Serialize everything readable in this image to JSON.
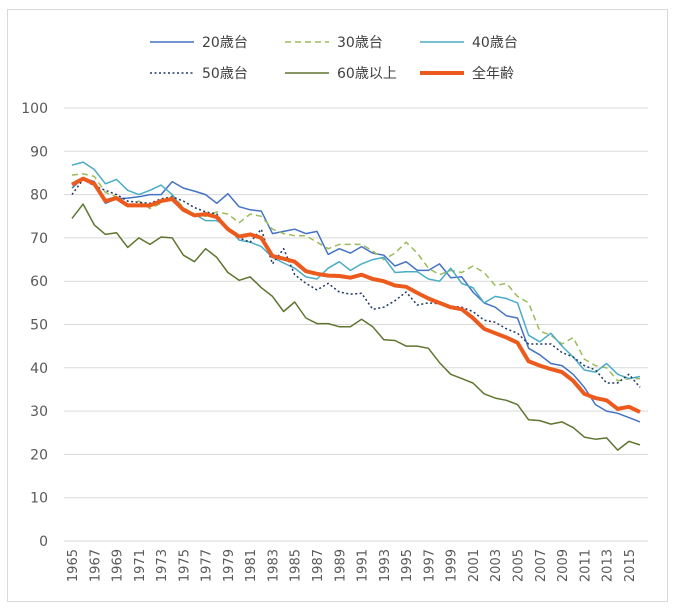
{
  "chart_data": {
    "type": "line",
    "title": "",
    "xlabel": "",
    "ylabel": "",
    "ylim": [
      0,
      100
    ],
    "yticks": [
      0,
      10,
      20,
      30,
      40,
      50,
      60,
      70,
      80,
      90,
      100
    ],
    "grid": true,
    "legend_position": "top",
    "x": [
      1965,
      1966,
      1967,
      1968,
      1969,
      1970,
      1971,
      1972,
      1973,
      1974,
      1975,
      1976,
      1977,
      1978,
      1979,
      1980,
      1981,
      1982,
      1983,
      1984,
      1985,
      1986,
      1987,
      1988,
      1989,
      1990,
      1991,
      1992,
      1993,
      1994,
      1995,
      1996,
      1997,
      1998,
      1999,
      2000,
      2001,
      2002,
      2003,
      2004,
      2005,
      2006,
      2007,
      2008,
      2009,
      2010,
      2011,
      2012,
      2013,
      2014,
      2015,
      2016
    ],
    "xtick_labels": [
      "1965",
      "1967",
      "1969",
      "1971",
      "1973",
      "1975",
      "1977",
      "1979",
      "1981",
      "1983",
      "1985",
      "1987",
      "1989",
      "1991",
      "1993",
      "1995",
      "1997",
      "1999",
      "2001",
      "2003",
      "2005",
      "2007",
      "2009",
      "2011",
      "2013",
      "2015"
    ],
    "series": [
      {
        "name": "20歳台",
        "color": "#4472c4",
        "dash": "",
        "width": 1.5,
        "values": [
          81.5,
          83.8,
          83.0,
          78.0,
          79.0,
          79.2,
          79.5,
          80.0,
          80.0,
          83.0,
          81.5,
          80.8,
          80.0,
          78.0,
          80.2,
          77.2,
          76.5,
          76.2,
          71.0,
          71.5,
          72.0,
          71.0,
          71.5,
          66.2,
          67.5,
          66.5,
          68.0,
          66.5,
          66.0,
          63.5,
          64.5,
          62.5,
          62.5,
          64.0,
          60.8,
          61.0,
          57.5,
          55.0,
          54.0,
          52.0,
          51.5,
          44.5,
          43.0,
          41.0,
          40.5,
          38.5,
          35.5,
          31.5,
          30.0,
          29.5,
          28.5,
          27.5
        ]
      },
      {
        "name": "30歳台",
        "color": "#9bbb59",
        "dash": "6,4",
        "width": 1.5,
        "values": [
          84.5,
          84.8,
          84.2,
          80.5,
          79.5,
          77.2,
          78.5,
          76.8,
          78.0,
          80.0,
          77.0,
          75.5,
          75.0,
          76.0,
          75.5,
          73.5,
          75.5,
          75.0,
          72.0,
          71.0,
          70.5,
          70.5,
          69.0,
          67.5,
          68.5,
          68.5,
          68.5,
          67.0,
          65.0,
          66.5,
          69.0,
          66.5,
          63.0,
          61.5,
          62.5,
          62.0,
          63.5,
          62.0,
          59.0,
          59.5,
          56.5,
          55.0,
          48.5,
          47.5,
          45.5,
          47.0,
          42.0,
          40.5,
          40.0,
          37.0,
          37.5,
          37.5
        ]
      },
      {
        "name": "40歳台",
        "color": "#4bacc6",
        "dash": "",
        "width": 1.5,
        "values": [
          86.8,
          87.5,
          85.8,
          82.5,
          83.5,
          81.0,
          80.0,
          81.0,
          82.2,
          80.0,
          76.5,
          75.5,
          74.0,
          74.0,
          72.5,
          69.5,
          69.0,
          68.0,
          65.5,
          64.2,
          63.0,
          61.0,
          60.5,
          63.0,
          64.5,
          62.5,
          64.0,
          65.0,
          65.5,
          62.0,
          62.2,
          62.2,
          60.5,
          60.0,
          63.0,
          59.5,
          58.5,
          55.0,
          56.5,
          56.0,
          55.0,
          47.5,
          46.0,
          48.0,
          45.0,
          42.5,
          39.5,
          39.0,
          41.0,
          38.5,
          37.5,
          38.0
        ]
      },
      {
        "name": "50歳台",
        "color": "#1f3864",
        "dash": "2,2.5",
        "width": 1.5,
        "values": [
          80.0,
          83.5,
          82.0,
          81.0,
          80.0,
          78.5,
          78.2,
          78.0,
          79.0,
          79.5,
          78.5,
          77.0,
          76.0,
          75.5,
          72.0,
          70.0,
          69.0,
          72.0,
          64.0,
          67.5,
          61.5,
          59.5,
          58.0,
          59.5,
          57.5,
          57.0,
          57.2,
          53.5,
          54.0,
          55.5,
          57.5,
          54.5,
          55.0,
          54.8,
          54.2,
          54.0,
          53.0,
          51.0,
          50.5,
          49.0,
          48.0,
          45.5,
          45.5,
          45.5,
          43.5,
          42.5,
          40.5,
          39.5,
          36.5,
          36.5,
          38.5,
          35.5
        ]
      },
      {
        "name": "60歳以上",
        "color": "#5f7530",
        "dash": "",
        "width": 1.5,
        "values": [
          74.5,
          77.8,
          73.0,
          70.8,
          71.2,
          67.8,
          70.0,
          68.5,
          70.2,
          70.0,
          66.0,
          64.5,
          67.5,
          65.5,
          62.0,
          60.2,
          61.0,
          58.5,
          56.5,
          53.0,
          55.2,
          51.5,
          50.2,
          50.2,
          49.5,
          49.5,
          51.2,
          49.5,
          46.5,
          46.3,
          45.0,
          45.0,
          44.5,
          41.2,
          38.5,
          37.5,
          36.5,
          34.0,
          33.0,
          32.5,
          31.5,
          28.0,
          27.8,
          27.0,
          27.5,
          26.2,
          24.0,
          23.5,
          23.8,
          21.0,
          23.0,
          22.2
        ]
      },
      {
        "name": "全年齢",
        "color": "#ed5a1e",
        "dash": "",
        "width": 4,
        "values": [
          82.3,
          83.7,
          82.5,
          78.5,
          79.2,
          77.5,
          77.5,
          77.5,
          78.5,
          79.0,
          76.5,
          75.2,
          75.5,
          74.8,
          72.0,
          70.3,
          70.8,
          70.0,
          65.8,
          65.2,
          64.5,
          62.3,
          61.7,
          61.3,
          61.2,
          60.8,
          61.5,
          60.5,
          60.0,
          59.0,
          58.7,
          57.3,
          56.0,
          55.0,
          54.0,
          53.5,
          51.5,
          49.0,
          48.0,
          47.0,
          45.8,
          41.5,
          40.5,
          39.7,
          39.0,
          37.0,
          34.0,
          33.0,
          32.5,
          30.5,
          31.0,
          29.8
        ]
      }
    ]
  }
}
